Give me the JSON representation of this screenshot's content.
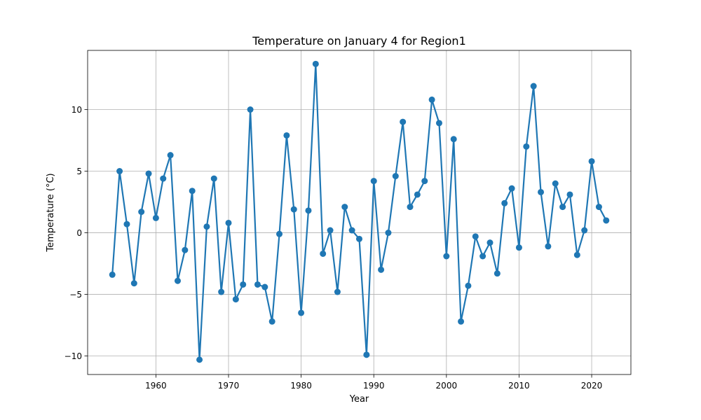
{
  "chart_data": {
    "type": "line",
    "title": "Temperature on January 4 for Region1",
    "xlabel": "Year",
    "ylabel": "Temperature (°C)",
    "xlim": [
      1950.6,
      2025.4
    ],
    "ylim": [
      -11.5,
      14.8
    ],
    "x_ticks": [
      {
        "value": 1960,
        "label": "1960"
      },
      {
        "value": 1970,
        "label": "1970"
      },
      {
        "value": 1980,
        "label": "1980"
      },
      {
        "value": 1990,
        "label": "1990"
      },
      {
        "value": 2000,
        "label": "2000"
      },
      {
        "value": 2010,
        "label": "2010"
      },
      {
        "value": 2020,
        "label": "2020"
      }
    ],
    "y_ticks": [
      {
        "value": -10,
        "label": "−10"
      },
      {
        "value": -5,
        "label": "−5"
      },
      {
        "value": 0,
        "label": "0"
      },
      {
        "value": 5,
        "label": "5"
      },
      {
        "value": 10,
        "label": "10"
      }
    ],
    "grid": true,
    "color": "#1f77b4",
    "marker": "circle",
    "x": [
      1954,
      1955,
      1956,
      1957,
      1958,
      1959,
      1960,
      1961,
      1962,
      1963,
      1964,
      1965,
      1966,
      1967,
      1968,
      1969,
      1970,
      1971,
      1972,
      1973,
      1974,
      1975,
      1976,
      1977,
      1978,
      1979,
      1980,
      1981,
      1982,
      1983,
      1984,
      1985,
      1986,
      1987,
      1988,
      1989,
      1990,
      1991,
      1992,
      1993,
      1994,
      1995,
      1996,
      1997,
      1998,
      1999,
      2000,
      2001,
      2002,
      2003,
      2004,
      2005,
      2006,
      2007,
      2008,
      2009,
      2010,
      2011,
      2012,
      2013,
      2014,
      2015,
      2016,
      2017,
      2018,
      2019,
      2020,
      2021,
      2022
    ],
    "y": [
      -3.4,
      5.0,
      0.7,
      -4.1,
      1.7,
      4.8,
      1.2,
      4.4,
      6.3,
      -3.9,
      -1.4,
      3.4,
      -10.3,
      0.5,
      4.4,
      -4.8,
      0.8,
      -5.4,
      -4.2,
      10.0,
      -4.2,
      -4.4,
      -7.2,
      -0.1,
      7.9,
      1.9,
      -6.5,
      1.8,
      13.7,
      -1.7,
      0.2,
      -4.8,
      2.1,
      0.2,
      -0.5,
      -9.9,
      4.2,
      -3.0,
      0.0,
      4.6,
      9.0,
      2.1,
      3.1,
      4.2,
      10.8,
      8.9,
      -1.9,
      7.6,
      -7.2,
      -4.3,
      -0.3,
      -1.9,
      -0.8,
      -3.3,
      2.4,
      3.6,
      -1.2,
      7.0,
      11.9,
      3.3,
      -1.1,
      4.0,
      2.1,
      3.1,
      -1.8,
      0.2,
      5.8,
      2.1,
      1.0
    ]
  }
}
